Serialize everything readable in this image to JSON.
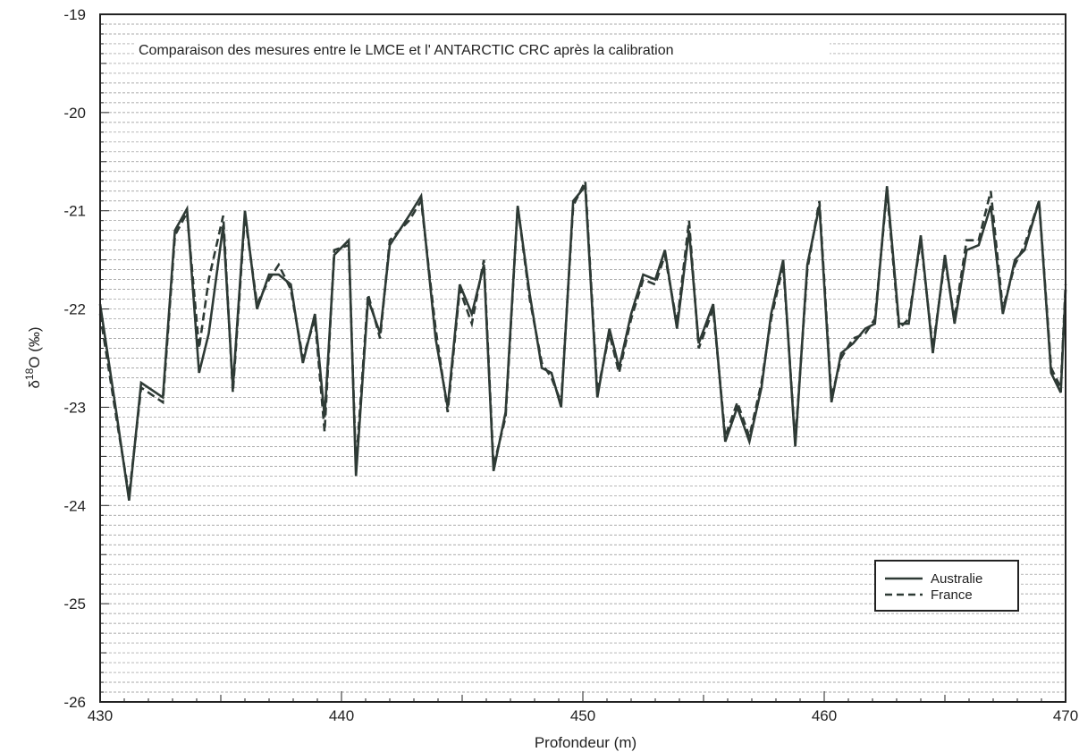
{
  "chart_data": {
    "type": "line",
    "title": "Comparaison des mesures entre le LMCE et l' ANTARCTIC CRC après la calibration",
    "xlabel": "Profondeur (m)",
    "ylabel": "δ18O (‰)",
    "ylabel_main": "δ",
    "ylabel_sup": "18",
    "ylabel_rest": "O (‰)",
    "xlim": [
      430,
      470
    ],
    "ylim": [
      -26,
      -19
    ],
    "x_ticks": [
      430,
      440,
      450,
      460,
      470
    ],
    "y_ticks": [
      -19,
      -20,
      -21,
      -22,
      -23,
      -24,
      -25,
      -26
    ],
    "grid": true,
    "legend_position": "bottom-right",
    "series": [
      {
        "name": "Australie",
        "style": "solid",
        "color": "#2e3a35",
        "x": [
          430,
          430.7,
          431.2,
          431.7,
          432.6,
          433.1,
          433.6,
          434.1,
          434.5,
          435.1,
          435.5,
          436,
          436.5,
          437,
          437.4,
          437.9,
          438.4,
          438.9,
          439.3,
          439.7,
          440.3,
          440.6,
          441.1,
          441.6,
          442,
          442.8,
          443.3,
          443.9,
          444.4,
          444.9,
          445.4,
          445.9,
          446.3,
          446.8,
          447.3,
          447.8,
          448.3,
          448.7,
          449.1,
          449.6,
          450.1,
          450.6,
          451.1,
          451.5,
          452,
          452.5,
          453,
          453.4,
          453.9,
          454.4,
          454.8,
          455.4,
          455.9,
          456.4,
          456.9,
          457.4,
          457.8,
          458.3,
          458.8,
          459.3,
          459.8,
          460.3,
          460.7,
          461.2,
          461.7,
          462.1,
          462.6,
          463.1,
          463.5,
          464,
          464.5,
          465,
          465.4,
          465.9,
          466.4,
          466.9,
          467.4,
          467.9,
          468.3,
          468.9,
          469.4,
          469.8,
          470
        ],
        "y": [
          -21.95,
          -23.1,
          -23.95,
          -22.75,
          -22.9,
          -21.2,
          -20.98,
          -22.65,
          -22.25,
          -21.15,
          -22.8,
          -21,
          -22,
          -21.65,
          -21.65,
          -21.75,
          -22.55,
          -22.05,
          -23.1,
          -21.45,
          -21.3,
          -23.7,
          -21.9,
          -22.25,
          -21.35,
          -21.05,
          -20.85,
          -22.3,
          -23,
          -21.75,
          -22.05,
          -21.55,
          -23.65,
          -23.05,
          -20.95,
          -21.85,
          -22.6,
          -22.65,
          -23,
          -20.9,
          -20.75,
          -22.9,
          -22.2,
          -22.6,
          -22.05,
          -21.65,
          -21.7,
          -21.4,
          -22.2,
          -21.2,
          -22.35,
          -21.95,
          -23.35,
          -23,
          -23.35,
          -22.8,
          -22.05,
          -21.5,
          -23.4,
          -21.55,
          -20.95,
          -22.95,
          -22.45,
          -22.35,
          -22.2,
          -22.15,
          -20.75,
          -22.15,
          -22.15,
          -21.25,
          -22.45,
          -21.45,
          -22.15,
          -21.4,
          -21.35,
          -20.95,
          -22.05,
          -21.5,
          -21.4,
          -20.9,
          -22.65,
          -22.85,
          -21.8
        ]
      },
      {
        "name": "France",
        "style": "dashed",
        "color": "#2e3a35",
        "x": [
          430,
          430.7,
          431.2,
          431.7,
          432.6,
          433.1,
          433.6,
          434.1,
          434.5,
          435.1,
          435.5,
          436,
          436.5,
          437,
          437.4,
          437.9,
          438.4,
          438.9,
          439.3,
          439.7,
          440.3,
          440.6,
          441.1,
          441.6,
          442,
          442.8,
          443.3,
          443.9,
          444.4,
          444.9,
          445.4,
          445.9,
          446.3,
          446.8,
          447.3,
          447.8,
          448.3,
          448.7,
          449.1,
          449.6,
          450.1,
          450.6,
          451.1,
          451.5,
          452,
          452.5,
          453,
          453.4,
          453.9,
          454.4,
          454.8,
          455.4,
          455.9,
          456.4,
          456.9,
          457.4,
          457.8,
          458.3,
          458.8,
          459.3,
          459.8,
          460.3,
          460.7,
          461.2,
          461.7,
          462.1,
          462.6,
          463.1,
          463.5,
          464,
          464.5,
          465,
          465.4,
          465.9,
          466.4,
          466.9,
          467.4,
          467.9,
          468.3,
          468.9,
          469.4,
          469.8,
          470
        ],
        "y": [
          -22.05,
          -23.15,
          -23.9,
          -22.8,
          -22.95,
          -21.25,
          -21.02,
          -22.4,
          -21.7,
          -21.05,
          -22.85,
          -21.05,
          -21.95,
          -21.7,
          -21.55,
          -21.8,
          -22.5,
          -22.1,
          -23.25,
          -21.4,
          -21.35,
          -23.6,
          -21.85,
          -22.3,
          -21.3,
          -21.1,
          -20.9,
          -22.2,
          -23.05,
          -21.8,
          -22.15,
          -21.5,
          -23.6,
          -23.1,
          -20.95,
          -21.9,
          -22.55,
          -22.7,
          -22.95,
          -20.95,
          -20.7,
          -22.85,
          -22.25,
          -22.65,
          -22.1,
          -21.7,
          -21.75,
          -21.45,
          -22.15,
          -21.1,
          -22.4,
          -22,
          -23.3,
          -22.95,
          -23.3,
          -22.75,
          -22.1,
          -21.55,
          -23.35,
          -21.6,
          -20.9,
          -22.9,
          -22.5,
          -22.3,
          -22.25,
          -22.1,
          -20.8,
          -22.2,
          -22.1,
          -21.3,
          -22.4,
          -21.5,
          -22.1,
          -21.3,
          -21.3,
          -20.8,
          -22,
          -21.55,
          -21.35,
          -20.9,
          -22.6,
          -22.8,
          -21.75
        ]
      }
    ]
  }
}
